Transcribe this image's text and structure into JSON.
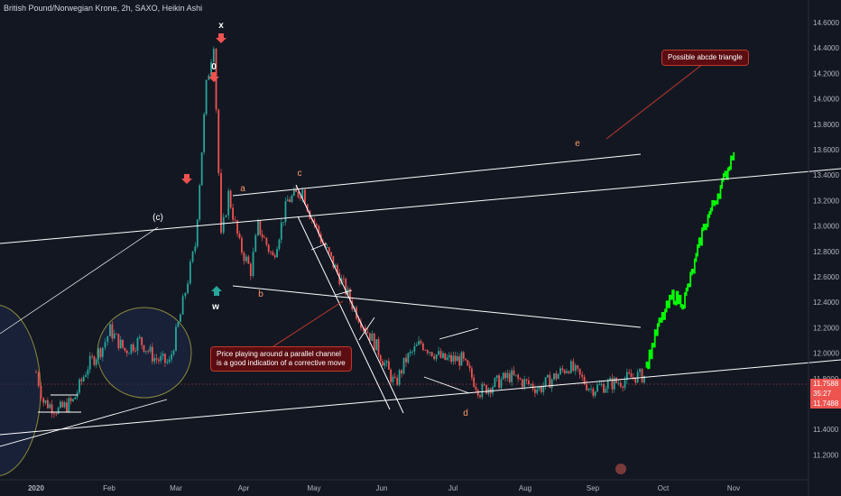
{
  "header": {
    "title": "British Pound/Norwegian Krone, 2h, SAXO, Heikin Ashi"
  },
  "colors": {
    "background": "#131722",
    "up_candle": "#26a69a",
    "down_candle": "#ef5350",
    "projection": "#00ff00",
    "lines": "#ffffff",
    "wave_labels": "#ff9966",
    "marker_red": "#ef5350",
    "marker_green": "#26a69a",
    "callout_bg": "#5b0d12",
    "last_price_bg": "#ef5350"
  },
  "chart_data": {
    "type": "candlestick",
    "title": "British Pound/Norwegian Krone, 2h, SAXO, Heikin Ashi",
    "y_ticks": [
      "14.6000",
      "14.4000",
      "14.2000",
      "14.0000",
      "13.8000",
      "13.6000",
      "13.4000",
      "13.2000",
      "13.0000",
      "12.8000",
      "12.6000",
      "12.4000",
      "12.2000",
      "12.0000",
      "11.8000",
      "11.6000",
      "11.4000",
      "11.2000"
    ],
    "ylim": [
      11.2,
      14.6
    ],
    "x_ticks": [
      "2020",
      "Feb",
      "Mar",
      "Apr",
      "May",
      "Jun",
      "Jul",
      "Aug",
      "Sep",
      "Oct",
      "Nov"
    ],
    "series_price": [
      {
        "t": 0,
        "v": 11.85
      },
      {
        "t": 0.1,
        "v": 11.62
      },
      {
        "t": 0.3,
        "v": 11.55
      },
      {
        "t": 0.5,
        "v": 11.62
      },
      {
        "t": 0.7,
        "v": 11.9
      },
      {
        "t": 0.9,
        "v": 12.05
      },
      {
        "t": 1.0,
        "v": 12.18
      },
      {
        "t": 1.2,
        "v": 12.02
      },
      {
        "t": 1.4,
        "v": 12.1
      },
      {
        "t": 1.6,
        "v": 11.96
      },
      {
        "t": 1.8,
        "v": 11.92
      },
      {
        "t": 1.95,
        "v": 12.3
      },
      {
        "t": 2.05,
        "v": 12.58
      },
      {
        "t": 2.15,
        "v": 12.85
      },
      {
        "t": 2.3,
        "v": 14.1
      },
      {
        "t": 2.4,
        "v": 14.45
      },
      {
        "t": 2.5,
        "v": 12.9
      },
      {
        "t": 2.6,
        "v": 13.25
      },
      {
        "t": 2.75,
        "v": 12.85
      },
      {
        "t": 2.9,
        "v": 12.65
      },
      {
        "t": 3.0,
        "v": 13.0
      },
      {
        "t": 3.2,
        "v": 12.75
      },
      {
        "t": 3.4,
        "v": 13.2
      },
      {
        "t": 3.6,
        "v": 13.28
      },
      {
        "t": 3.7,
        "v": 13.1
      },
      {
        "t": 3.85,
        "v": 12.9
      },
      {
        "t": 4.1,
        "v": 12.6
      },
      {
        "t": 4.3,
        "v": 12.35
      },
      {
        "t": 4.6,
        "v": 12.05
      },
      {
        "t": 4.85,
        "v": 11.75
      },
      {
        "t": 5.0,
        "v": 11.95
      },
      {
        "t": 5.2,
        "v": 12.08
      },
      {
        "t": 5.5,
        "v": 11.95
      },
      {
        "t": 5.75,
        "v": 11.95
      },
      {
        "t": 6.0,
        "v": 11.7
      },
      {
        "t": 6.4,
        "v": 11.82
      },
      {
        "t": 6.8,
        "v": 11.72
      },
      {
        "t": 7.2,
        "v": 11.9
      },
      {
        "t": 7.5,
        "v": 11.72
      },
      {
        "t": 7.9,
        "v": 11.78
      },
      {
        "t": 8.1,
        "v": 11.82
      },
      {
        "t": 8.25,
        "v": 11.82
      }
    ],
    "series_projection": [
      {
        "t": 8.25,
        "v": 11.9
      },
      {
        "t": 8.4,
        "v": 12.2
      },
      {
        "t": 8.6,
        "v": 12.45
      },
      {
        "t": 8.75,
        "v": 12.4
      },
      {
        "t": 8.9,
        "v": 12.7
      },
      {
        "t": 9.0,
        "v": 12.95
      },
      {
        "t": 9.1,
        "v": 13.1
      },
      {
        "t": 9.25,
        "v": 13.3
      },
      {
        "t": 9.35,
        "v": 13.45
      },
      {
        "t": 9.45,
        "v": 13.65
      }
    ],
    "annotations": {
      "waves": [
        "x",
        "0",
        "w",
        "(c)",
        "a",
        "b",
        "c",
        "d",
        "e"
      ],
      "callouts": [
        {
          "text": "Possible abcde triangle"
        },
        {
          "lines": [
            "Price playing around a parallel channel",
            "is a good indication of a corrective move"
          ]
        }
      ]
    },
    "last_price": {
      "line1": "11.7588",
      "line2": "35:27",
      "line3": "11.7488"
    },
    "grid": false
  }
}
